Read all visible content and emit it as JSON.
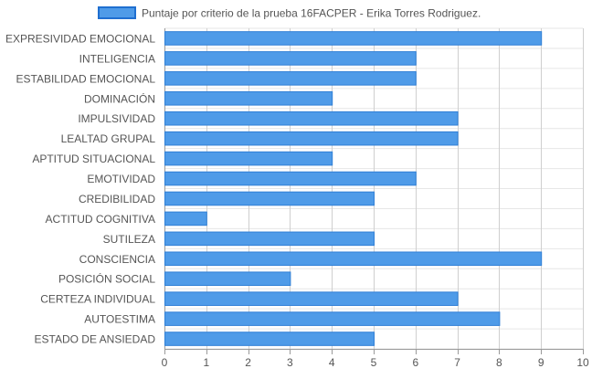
{
  "chart_data": {
    "type": "bar",
    "orientation": "horizontal",
    "categories": [
      "EXPRESIVIDAD EMOCIONAL",
      "INTELIGENCIA",
      "ESTABILIDAD EMOCIONAL",
      "DOMINACIÓN",
      "IMPULSIVIDAD",
      "LEALTAD GRUPAL",
      "APTITUD SITUACIONAL",
      "EMOTIVIDAD",
      "CREDIBILIDAD",
      "ACTITUD COGNITIVA",
      "SUTILEZA",
      "CONSCIENCIA",
      "POSICIÓN SOCIAL",
      "CERTEZA INDIVIDUAL",
      "AUTOESTIMA",
      "ESTADO DE ANSIEDAD"
    ],
    "series": [
      {
        "name": "Puntaje por criterio de la prueba 16FACPER -  Erika Torres Rodriguez.",
        "values": [
          9,
          6,
          6,
          4,
          7,
          7,
          4,
          6,
          5,
          1,
          5,
          9,
          3,
          7,
          8,
          5
        ]
      }
    ],
    "xlim": [
      0,
      10
    ],
    "xticks": [
      "0",
      "1",
      "2",
      "3",
      "4",
      "5",
      "6",
      "7",
      "8",
      "9",
      "10"
    ],
    "grid": true,
    "legend_position": "top",
    "colors": {
      "bar_fill": "#4f9be8",
      "bar_stroke": "#2f7fd6",
      "legend_fill": "#4f9be8",
      "legend_stroke": "#1f6fd0",
      "grid": "#cfcfcf",
      "row_line": "#e6e6e6",
      "axis": "#9a9a9a",
      "text": "#555555"
    }
  }
}
